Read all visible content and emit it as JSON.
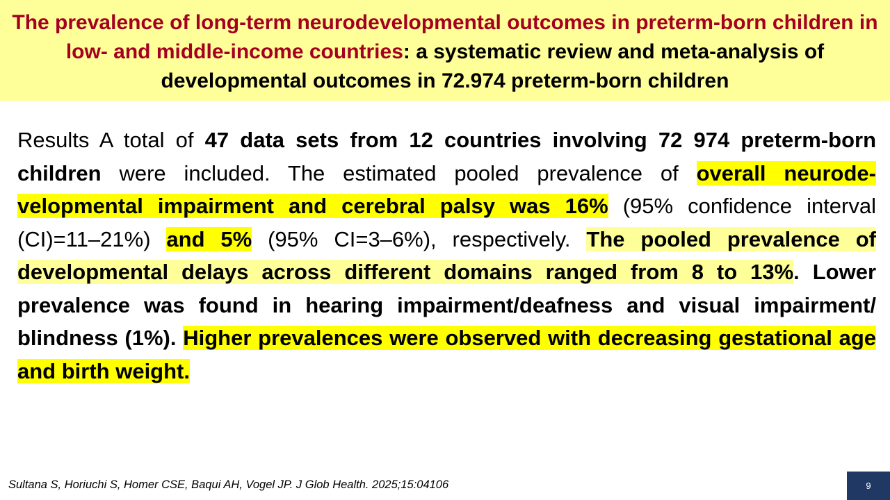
{
  "title": {
    "red_part_1": "The prevalence of long-term neurodevelopmental outcomes in preterm-born children in low- and middle-income countries",
    "black_part_1": ": a systematic review and meta-analysis of developmental outcomes in 72.974 preterm-born children"
  },
  "body": {
    "s1": "Results A total of ",
    "s2": "47 data sets from 12 countries involving 72 974 preterm-born children",
    "s3": " were included. The estimated pooled prevalence of ",
    "s4": "overall neurode- velopmental impairment and cerebral palsy was 16%",
    "s5": " (95% confidence interval (CI)=11–21%) ",
    "s6": "and 5%",
    "s7": " (95% CI=3–6%), respectively. ",
    "s8": "The pooled prevalence of developmental delays across different domains ranged from 8 to 13%",
    "s9": ". Lower prevalence was found in hearing impairment/deafness and visual impairment/ blindness (1%). ",
    "s10": "Higher prevalences were observed with decreasing gestational age and birth weight."
  },
  "citation": "Sultana S, Horiuchi S, Homer CSE, Baqui AH, Vogel JP. J Glob Health. 2025;15:04106",
  "page_number": "9",
  "colors": {
    "title_background": "#ffff99",
    "title_red": "#a50021",
    "highlight_yellow": "#ffff00",
    "highlight_pale": "#ffff99",
    "page_badge": "#1f3864"
  }
}
